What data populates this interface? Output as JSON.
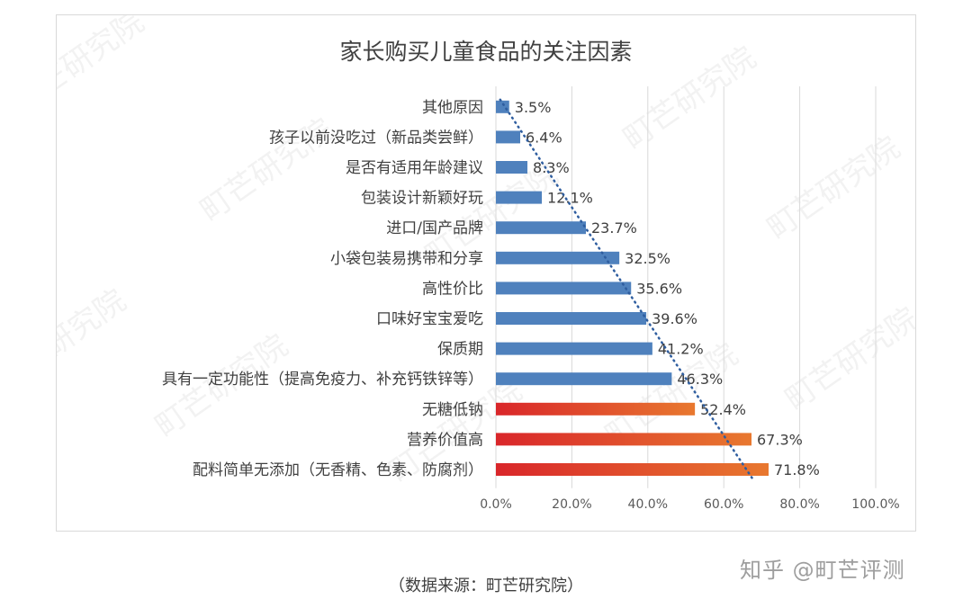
{
  "chart_data": {
    "type": "bar",
    "orientation": "horizontal",
    "title": "家长购买儿童食品的关注因素",
    "categories": [
      "其他原因",
      "孩子以前没吃过（新品类尝鲜）",
      "是否有适用年龄建议",
      "包装设计新颖好玩",
      "进口/国产品牌",
      "小袋包装易携带和分享",
      "高性价比",
      "口味好宝宝爱吃",
      "保质期",
      "具有一定功能性（提高免疫力、补充钙铁锌等）",
      "无糖低钠",
      "营养价值高",
      "配料简单无添加（无香精、色素、防腐剂）"
    ],
    "values": [
      3.5,
      6.4,
      8.3,
      12.1,
      23.7,
      32.5,
      35.6,
      39.6,
      41.2,
      46.3,
      52.4,
      67.3,
      71.8
    ],
    "value_labels": [
      "3.5%",
      "6.4%",
      "8.3%",
      "12.1%",
      "23.7%",
      "32.5%",
      "35.6%",
      "39.6%",
      "41.2%",
      "46.3%",
      "52.4%",
      "67.3%",
      "71.8%"
    ],
    "x_ticks": [
      "0.0%",
      "20.0%",
      "40.0%",
      "60.0%",
      "80.0%",
      "100.0%"
    ],
    "xlim": [
      0,
      100
    ],
    "grid": "vertical",
    "trendline": "dotted linear",
    "colors": {
      "default_bar": "#4f81bd",
      "highlight_start": "#d9262a",
      "highlight_end": "#e8782f",
      "trendline": "#2e5d9f",
      "gridline": "#d9d9d9"
    },
    "highlighted": [
      10,
      11,
      12
    ]
  },
  "source_note": "（数据来源：町芒研究院）",
  "brand_watermark": "知乎 @町芒评测",
  "background_watermark": "町芒研究院"
}
